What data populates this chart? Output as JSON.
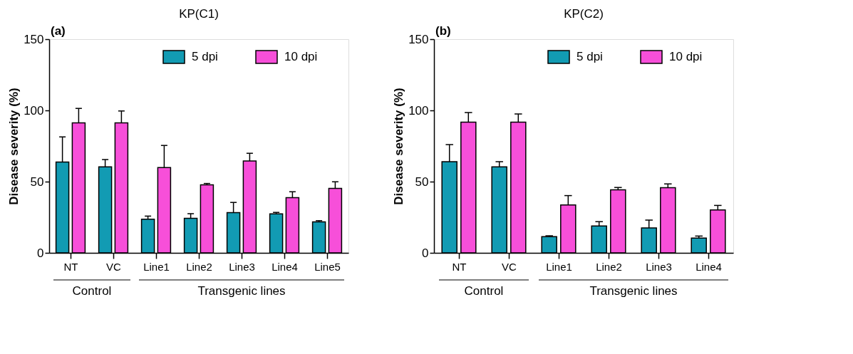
{
  "chart_data": [
    {
      "type": "bar",
      "title": "KP(C1)",
      "ylabel": "Disease severity (%)",
      "categories": [
        "NT",
        "VC",
        "Line1",
        "Line2",
        "Line3",
        "Line4",
        "Line5"
      ],
      "series": [
        {
          "name": "5 dpi",
          "color": "#129bb3",
          "values": [
            63.8,
            60.4,
            23.6,
            24.3,
            28.3,
            27.4,
            21.7
          ],
          "errors": [
            [
              63.8,
              81.4
            ],
            [
              60.4,
              65.5
            ],
            [
              23.6,
              25.8
            ],
            [
              24.3,
              27.5
            ],
            [
              28.3,
              35.4
            ],
            [
              27.4,
              28.4
            ],
            [
              21.7,
              22.6
            ]
          ]
        },
        {
          "name": "10 dpi",
          "color": "#f74fd9",
          "values": [
            91.3,
            91.3,
            59.9,
            47.8,
            64.5,
            38.8,
            45.2
          ],
          "errors": [
            [
              91.3,
              101.4
            ],
            [
              91.3,
              99.6
            ],
            [
              59.9,
              75.4
            ],
            [
              47.8,
              48.7
            ],
            [
              64.5,
              69.9
            ],
            [
              38.8,
              42.9
            ],
            [
              45.2,
              49.9
            ]
          ]
        }
      ],
      "ylim": [
        0,
        150
      ],
      "yticks": [
        0,
        50,
        100,
        150
      ],
      "grid": false,
      "legend": "top right",
      "annotations": [
        "(a)",
        "Control",
        "Transgenic lines"
      ]
    },
    {
      "type": "bar",
      "title": "KP(C2)",
      "ylabel": "Disease severity (%)",
      "categories": [
        "NT",
        "VC",
        "Line1",
        "Line2",
        "Line3",
        "Line4"
      ],
      "series": [
        {
          "name": "5 dpi",
          "color": "#129bb3",
          "values": [
            64.0,
            60.4,
            11.4,
            18.9,
            17.5,
            10.4
          ],
          "errors": [
            [
              64.0,
              76.0
            ],
            [
              60.4,
              64.0
            ],
            [
              11.4,
              12.0
            ],
            [
              18.9,
              21.9
            ],
            [
              17.5,
              23.0
            ],
            [
              10.4,
              11.8
            ]
          ]
        },
        {
          "name": "10 dpi",
          "color": "#f74fd9",
          "values": [
            91.8,
            91.8,
            33.6,
            44.3,
            45.8,
            30.1
          ],
          "errors": [
            [
              91.8,
              98.5
            ],
            [
              91.8,
              97.5
            ],
            [
              33.6,
              40.2
            ],
            [
              44.3,
              45.9
            ],
            [
              45.8,
              48.4
            ],
            [
              30.1,
              33.3
            ]
          ]
        }
      ],
      "ylim": [
        0,
        150
      ],
      "yticks": [
        0,
        50,
        100,
        150
      ],
      "grid": false,
      "legend": "top right",
      "annotations": [
        "(b)",
        "Control",
        "Transgenic lines"
      ]
    }
  ]
}
